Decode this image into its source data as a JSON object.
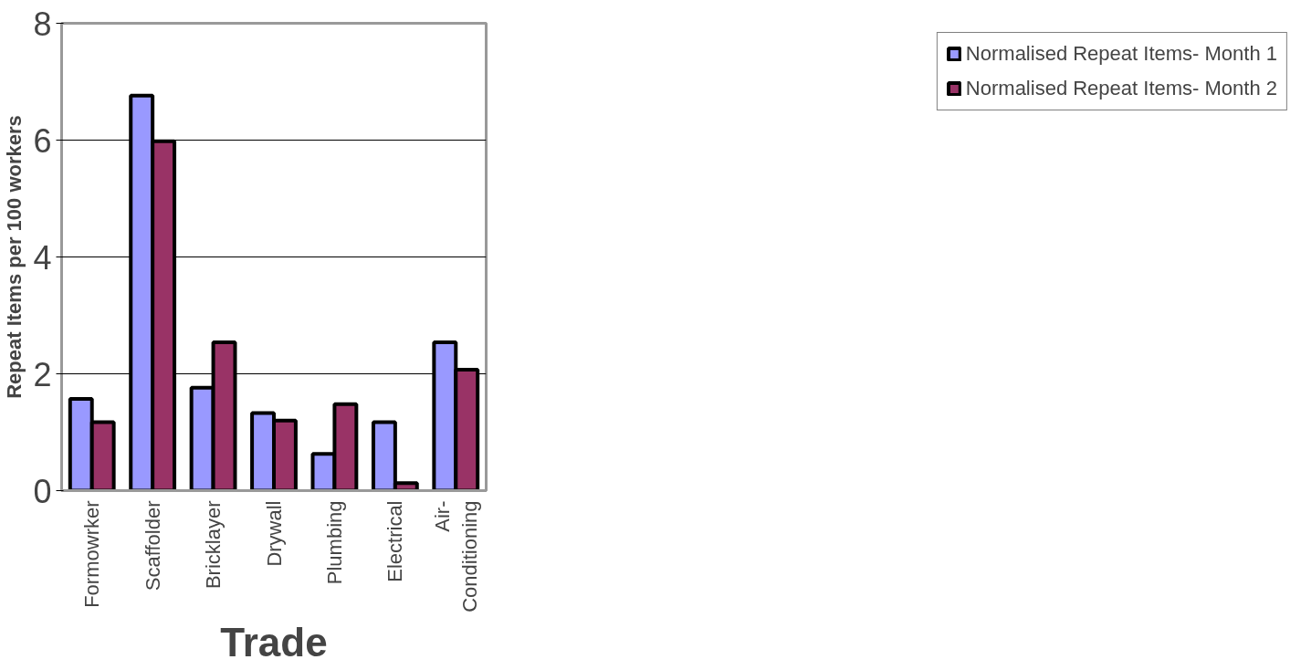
{
  "chart_data": {
    "type": "bar",
    "xlabel": "Trade",
    "ylabel": "Repeat Items per 100 workers",
    "categories": [
      "Formowrker",
      "Scaffolder",
      "Bricklayer",
      "Drywall",
      "Plumbing",
      "Electrical",
      "Air-Conditioning"
    ],
    "series": [
      {
        "name": "Normalised Repeat Items- Month 1",
        "color": "#9999ff",
        "values": [
          1.57,
          6.76,
          1.76,
          1.33,
          0.63,
          1.17,
          2.54
        ]
      },
      {
        "name": "Normalised Repeat Items- Month 2",
        "color": "#993366",
        "values": [
          1.17,
          5.98,
          2.54,
          1.2,
          1.48,
          0.13,
          2.07
        ]
      }
    ],
    "ylim": [
      0,
      8
    ],
    "yticks": [
      0,
      2,
      4,
      6,
      8
    ],
    "grid": "y",
    "legend": "right"
  }
}
